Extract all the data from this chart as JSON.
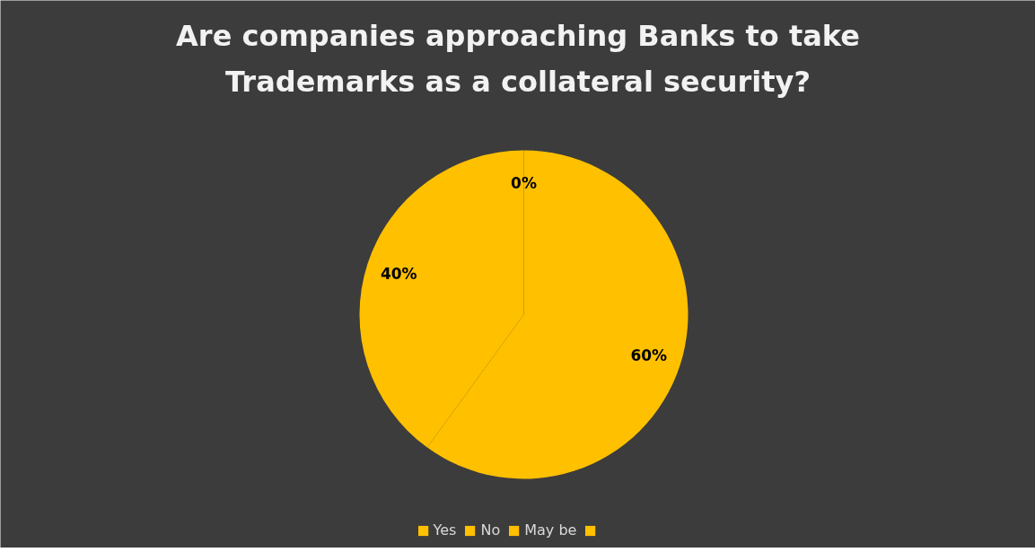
{
  "chart_data": {
    "type": "pie",
    "title": "Are companies approaching Banks to take Trademarks as a collateral security?",
    "categories": [
      "Yes",
      "No",
      "May be",
      null
    ],
    "values": [
      60,
      40,
      0,
      0
    ],
    "value_labels": [
      "60%",
      "40%",
      "0%",
      null
    ],
    "colors": [
      "#ffc000",
      "#ffc000",
      "#ffc000",
      "#ffc000"
    ],
    "legend": "bottom"
  }
}
